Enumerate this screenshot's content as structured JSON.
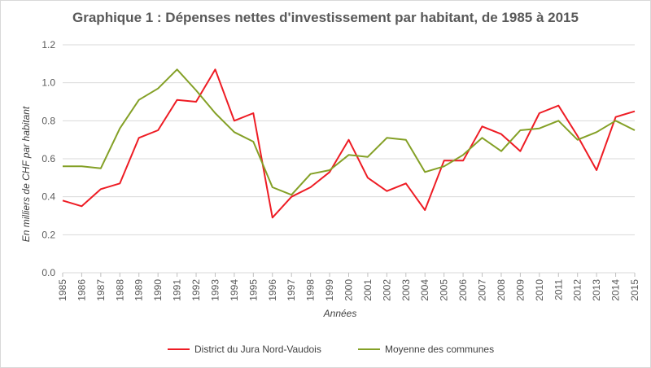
{
  "chart_data": {
    "type": "line",
    "title": "Graphique 1 : Dépenses nettes d'investissement par habitant, de 1985 à 2015",
    "xlabel": "Années",
    "ylabel": "En milliers de CHF par habitant",
    "ylim": [
      0,
      1.2
    ],
    "yticks": [
      "0.0",
      "0.2",
      "0.4",
      "0.6",
      "0.8",
      "1.0",
      "1.2"
    ],
    "grid": true,
    "legend_position": "bottom",
    "x": [
      "1985",
      "1986",
      "1987",
      "1988",
      "1989",
      "1990",
      "1991",
      "1992",
      "1993",
      "1994",
      "1995",
      "1996",
      "1997",
      "1998",
      "1999",
      "2000",
      "2001",
      "2002",
      "2003",
      "2004",
      "2005",
      "2006",
      "2007",
      "2008",
      "2009",
      "2010",
      "2011",
      "2012",
      "2013",
      "2014",
      "2015"
    ],
    "series": [
      {
        "name": "District du Jura Nord-Vaudois",
        "color": "#ee1c24",
        "values": [
          0.38,
          0.35,
          0.44,
          0.47,
          0.71,
          0.75,
          0.91,
          0.9,
          1.07,
          0.8,
          0.84,
          0.29,
          0.4,
          0.45,
          0.53,
          0.7,
          0.5,
          0.43,
          0.47,
          0.33,
          0.59,
          0.59,
          0.77,
          0.73,
          0.64,
          0.84,
          0.88,
          0.72,
          0.54,
          0.82,
          0.85
        ]
      },
      {
        "name": "Moyenne des communes",
        "color": "#84a026",
        "values": [
          0.56,
          0.56,
          0.55,
          0.76,
          0.91,
          0.97,
          1.07,
          0.96,
          0.84,
          0.74,
          0.69,
          0.45,
          0.41,
          0.52,
          0.54,
          0.62,
          0.61,
          0.71,
          0.7,
          0.53,
          0.56,
          0.62,
          0.71,
          0.64,
          0.75,
          0.76,
          0.8,
          0.7,
          0.74,
          0.8,
          0.75
        ]
      }
    ]
  }
}
